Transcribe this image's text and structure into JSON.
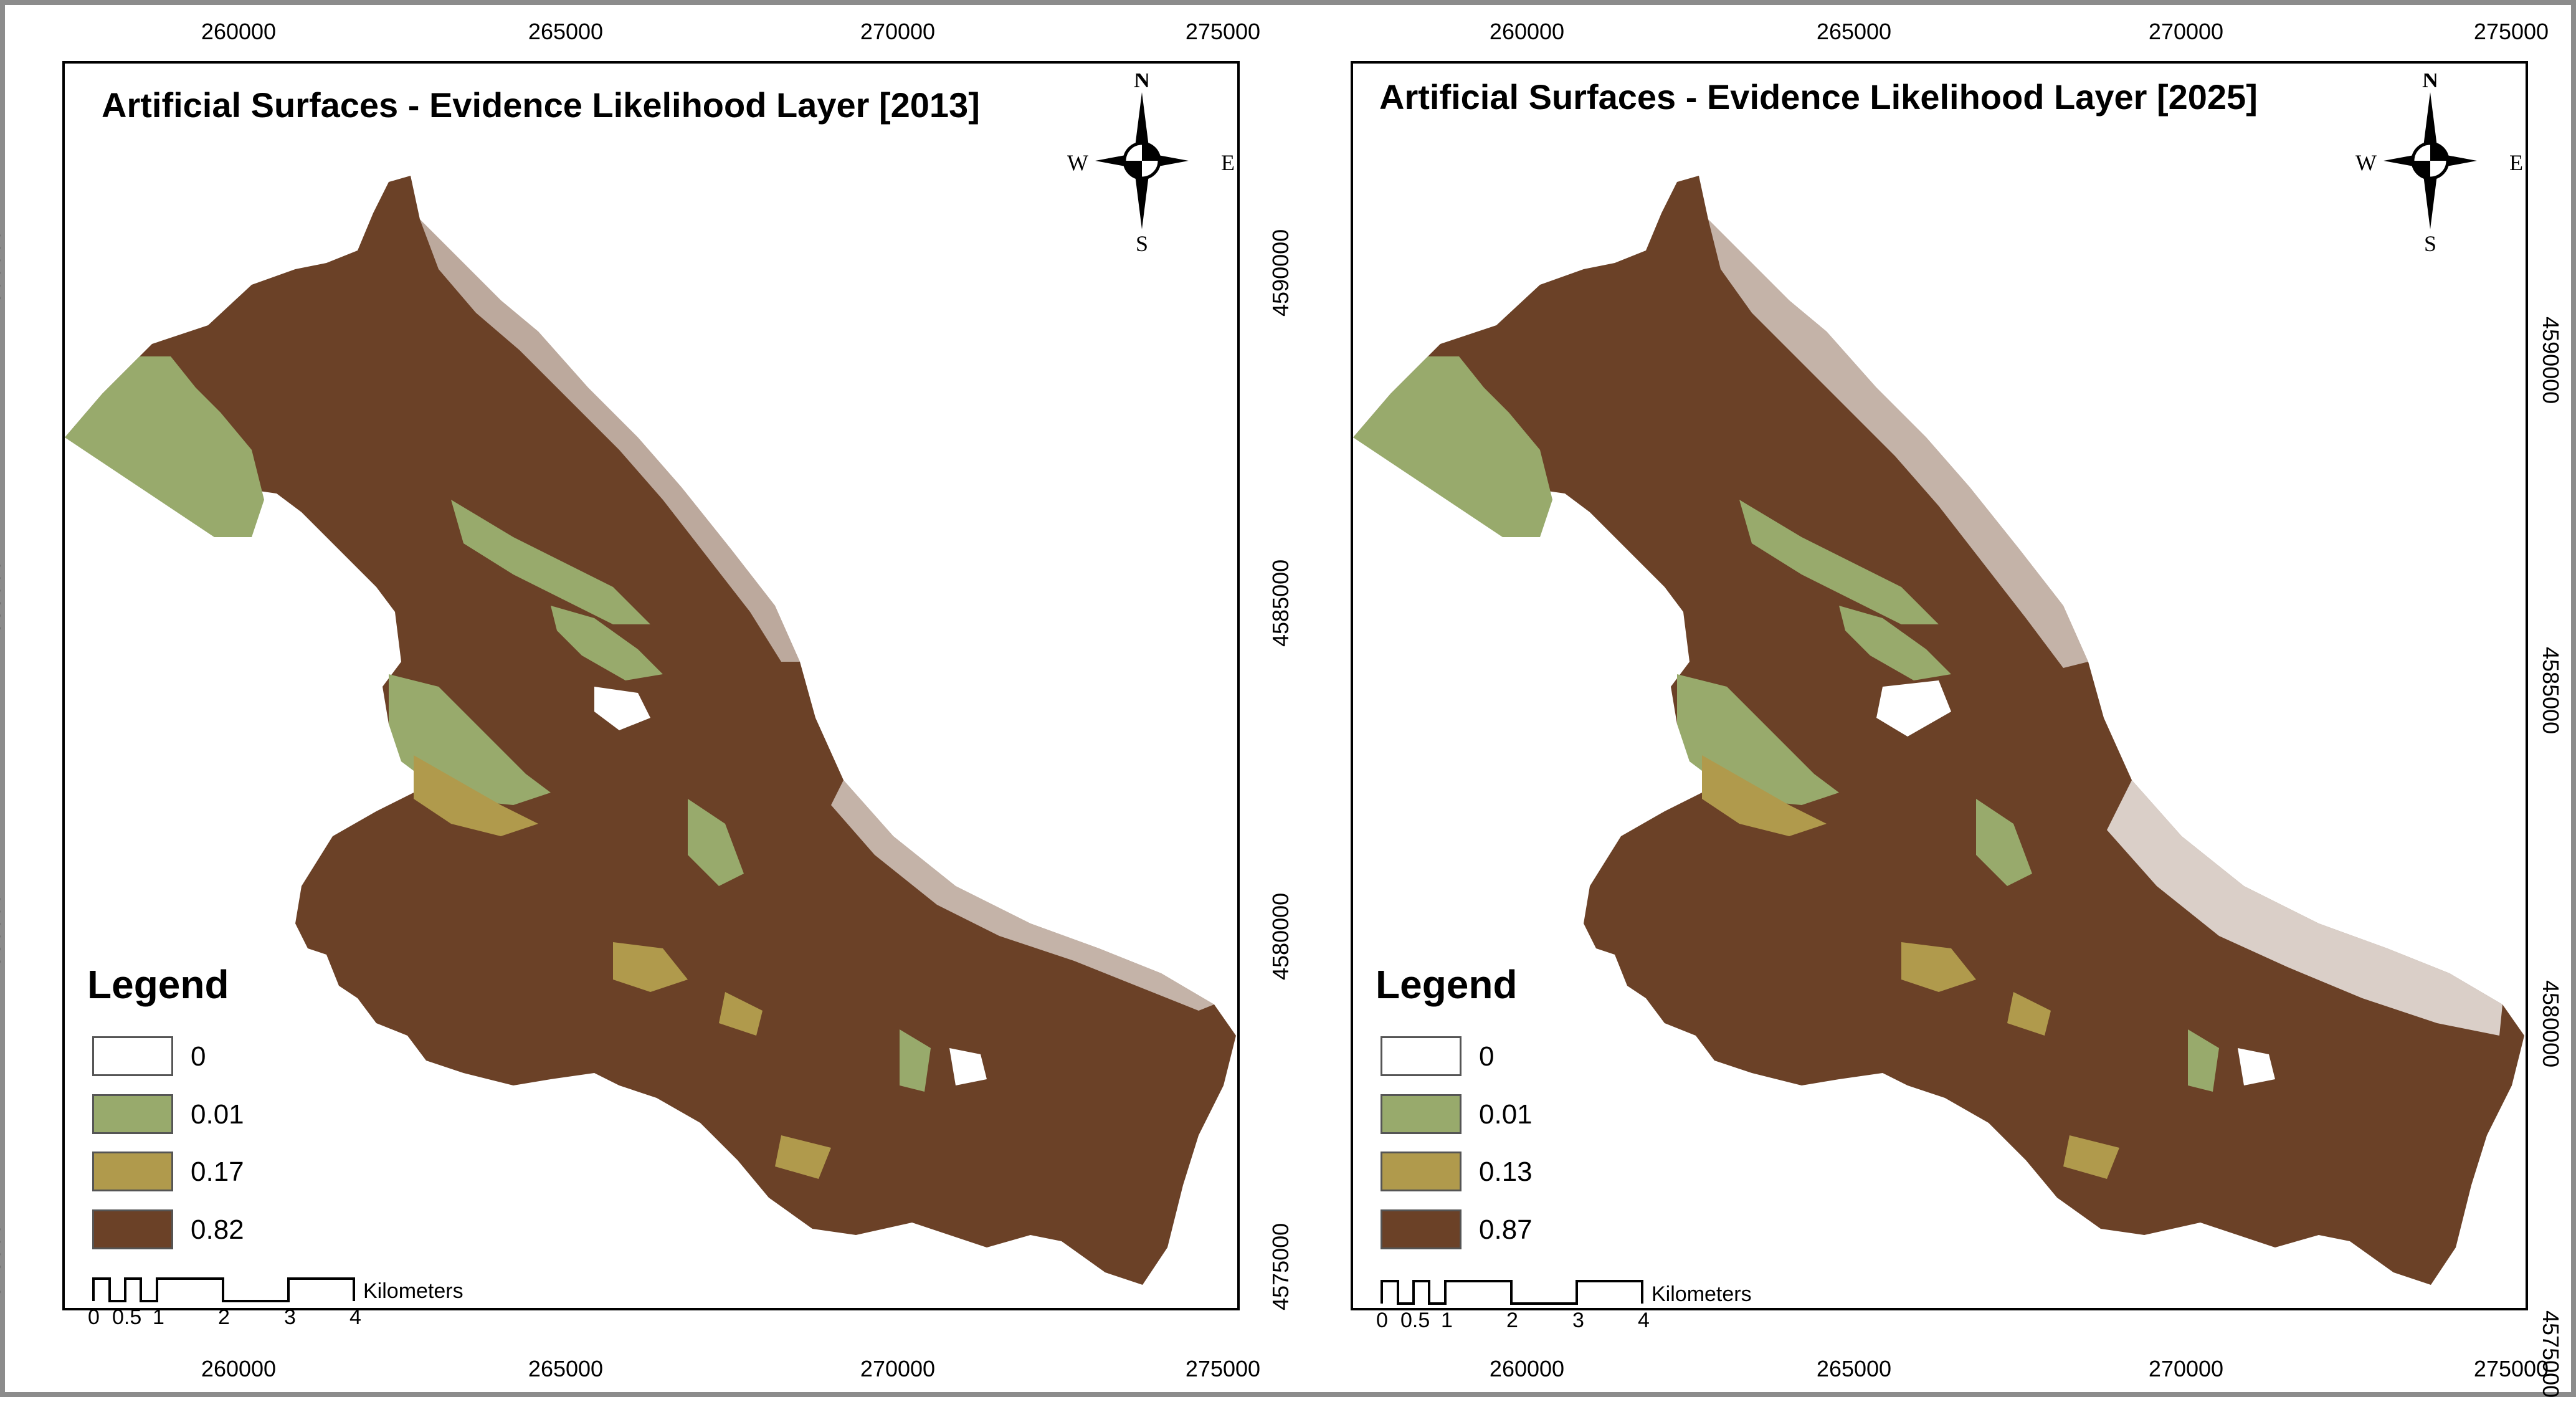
{
  "colors": {
    "class_0": "#ffffff",
    "class_1": "#98aa6c",
    "class_2": "#b09a4c",
    "class_3": "#6b4127",
    "border": "#8c8c8c"
  },
  "maps": [
    {
      "title": "Artificial Surfaces - Evidence Likelihood Layer [2013]",
      "legend": {
        "title": "Legend",
        "items": [
          {
            "label": "0",
            "color": "#ffffff"
          },
          {
            "label": "0.01",
            "color": "#98aa6c"
          },
          {
            "label": "0.17",
            "color": "#b09a4c"
          },
          {
            "label": "0.82",
            "color": "#6b4127"
          }
        ]
      }
    },
    {
      "title": "Artificial Surfaces - Evidence Likelihood Layer [2025]",
      "legend": {
        "title": "Legend",
        "items": [
          {
            "label": "0",
            "color": "#ffffff"
          },
          {
            "label": "0.01",
            "color": "#98aa6c"
          },
          {
            "label": "0.13",
            "color": "#b09a4c"
          },
          {
            "label": "0.87",
            "color": "#6b4127"
          }
        ]
      }
    }
  ],
  "grid": {
    "easting_labels": [
      "260000",
      "265000",
      "270000",
      "275000"
    ],
    "northing_labels": [
      "4590000",
      "4585000",
      "4580000",
      "4575000"
    ]
  },
  "north_arrow": {
    "n": "N",
    "s": "S",
    "e": "E",
    "w": "W"
  },
  "scale_bar": {
    "unit": "Kilometers",
    "ticks": [
      "0",
      "0.5",
      "1",
      "2",
      "3",
      "4"
    ]
  }
}
